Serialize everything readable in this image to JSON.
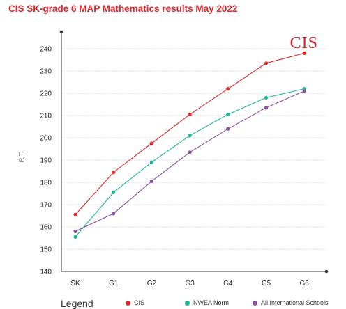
{
  "title": "CIS SK-grade 6 MAP Mathematics results May 2022",
  "logo_text": "CIS",
  "legend": {
    "title": "Legend",
    "items": [
      {
        "label": "CIS",
        "color": "#dd2a2a"
      },
      {
        "label": "NWEA Norm",
        "color": "#1fb59a"
      },
      {
        "label": "All International Schools",
        "color": "#8a4f9e"
      }
    ]
  },
  "chart_data": {
    "type": "line",
    "title": "CIS SK-grade 6 MAP Mathematics results May 2022",
    "xlabel": "",
    "ylabel": "RIT",
    "categories": [
      "SK",
      "G1",
      "G2",
      "G3",
      "G4",
      "G5",
      "G6"
    ],
    "ylim": [
      140,
      240
    ],
    "yticks": [
      140,
      150,
      160,
      170,
      180,
      190,
      200,
      210,
      220,
      230,
      240
    ],
    "grid": true,
    "legend_position": "bottom",
    "series": [
      {
        "name": "CIS",
        "color": "#dd2a2a",
        "values": [
          165.5,
          184.5,
          197.5,
          210.5,
          222,
          233.5,
          238
        ]
      },
      {
        "name": "NWEA Norm",
        "color": "#1fb59a",
        "values": [
          155.5,
          175.5,
          189,
          201,
          210.5,
          218,
          222
        ]
      },
      {
        "name": "All International Schools",
        "color": "#8a4f9e",
        "values": [
          158,
          166,
          180.5,
          193.5,
          204,
          213.5,
          221
        ]
      }
    ]
  }
}
